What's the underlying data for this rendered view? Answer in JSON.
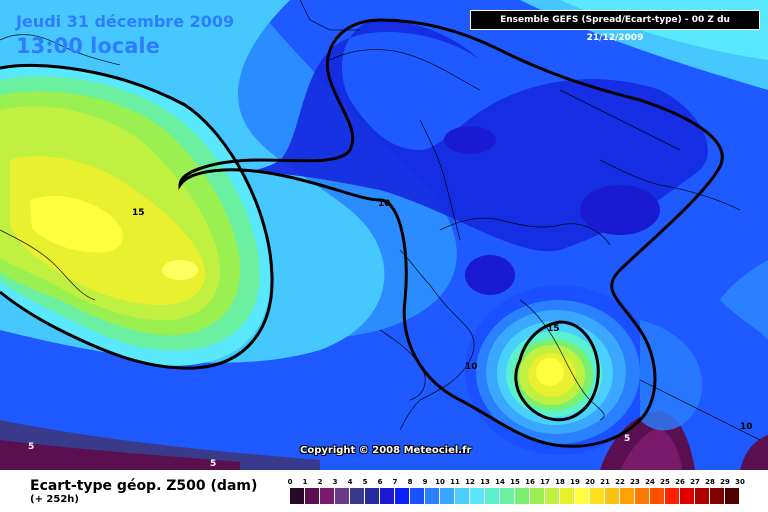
{
  "header": {
    "date": "Jeudi 31 décembre 2009",
    "local_time": "13:00 locale",
    "run_info": "Ensemble GEFS (Spread/Ecart-type) - 00 Z du 21/12/2009"
  },
  "map": {
    "contour_labels": [
      {
        "id": "15-greenland",
        "text": "15"
      },
      {
        "id": "10-north-atlantic",
        "text": "10"
      },
      {
        "id": "15-italy",
        "text": "15"
      },
      {
        "id": "10-spain",
        "text": "10"
      },
      {
        "id": "10-east",
        "text": "10"
      },
      {
        "id": "5-west",
        "text": "5"
      },
      {
        "id": "5-south",
        "text": "5"
      },
      {
        "id": "5-med",
        "text": "5"
      }
    ],
    "copyright": "Copyright © 2008 Meteociel.fr"
  },
  "footer": {
    "parameter": "Ecart-type géop. Z500 (dam)",
    "lead_time": "(+ 252h)"
  },
  "legend": {
    "ticks": [
      "0",
      "1",
      "2",
      "3",
      "4",
      "5",
      "6",
      "7",
      "8",
      "9",
      "10",
      "11",
      "12",
      "13",
      "14",
      "15",
      "16",
      "17",
      "18",
      "19",
      "20",
      "21",
      "22",
      "23",
      "24",
      "25",
      "26",
      "27",
      "28",
      "29",
      "30"
    ],
    "colors": [
      "#2a0a2a",
      "#5a1050",
      "#7a1a6a",
      "#6a3a8a",
      "#3a3a8a",
      "#2a2aa0",
      "#1a1ad0",
      "#0a20ff",
      "#1a50ff",
      "#2a80ff",
      "#3aa8ff",
      "#4ad0ff",
      "#5ae8ff",
      "#5af0d0",
      "#6af0a0",
      "#7af070",
      "#9af050",
      "#c0f040",
      "#e8f030",
      "#ffff40",
      "#ffe020",
      "#ffc010",
      "#ffa000",
      "#ff7a00",
      "#ff5000",
      "#ff2000",
      "#e00000",
      "#b00000",
      "#800000",
      "#500000"
    ]
  }
}
